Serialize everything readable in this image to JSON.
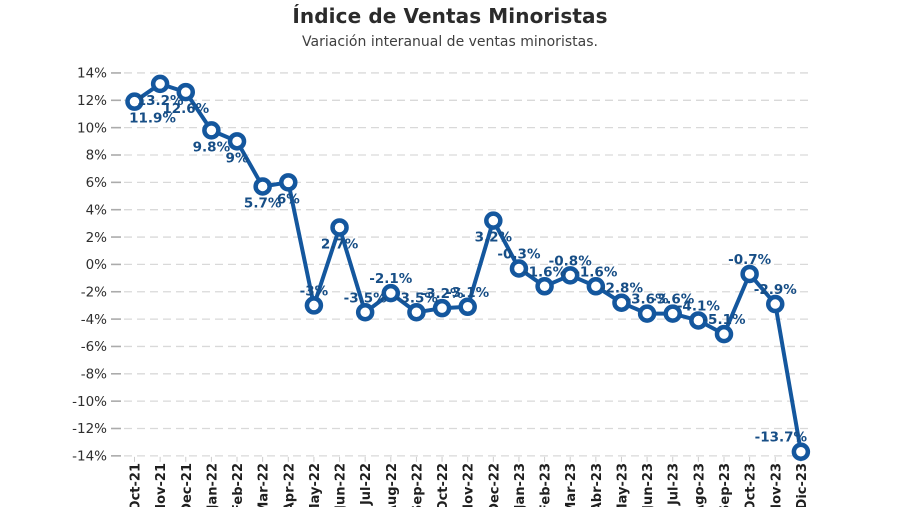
{
  "chart_data": {
    "type": "line",
    "title": "Índice de Ventas Minoristas",
    "subtitle": "Variación interanual de ventas minoristas.",
    "categories": [
      "Oct-21",
      "Nov-21",
      "Dec-21",
      "Jan-22",
      "Feb-22",
      "Mar-22",
      "Apr-22",
      "May-22",
      "Jun-22",
      "Jul-22",
      "Aug-22",
      "Sep-22",
      "Oct-22",
      "Nov-22",
      "Dec-22",
      "Jan-23",
      "Feb-23",
      "Mar-23",
      "Abr-23",
      "May-23",
      "Jun-23",
      "Jul-23",
      "Ago-23",
      "Sep-23",
      "Oct-23",
      "Nov-23",
      "Dic-23"
    ],
    "values": [
      11.9,
      13.2,
      12.6,
      9.8,
      9,
      5.7,
      6,
      -3,
      2.7,
      -3.5,
      -2.1,
      -3.5,
      -3.2,
      -3.1,
      3.2,
      -0.3,
      -1.6,
      -0.8,
      -1.6,
      -2.8,
      -3.6,
      -3.6,
      -4.1,
      -5.1,
      -0.7,
      -2.9,
      -13.7
    ],
    "point_labels": [
      "11.9%",
      "13.2%",
      "12.6%",
      "9.8%",
      "9%",
      "5.7%",
      "6%",
      "-3%",
      "2.7%",
      "-3.5%",
      "-2.1%",
      "-3.5%",
      "-3.2%",
      "-3.1%",
      "3.2%",
      "-0.3%",
      "-1.6%",
      "-0.8%",
      "-1.6%",
      "-2.8%",
      "-3.6%",
      "-3.6%",
      "-4.1%",
      "-5.1%",
      "-0.7%",
      "-2.9%",
      "-13.7%"
    ],
    "ylim": [
      -14,
      14
    ],
    "ytick_step": 2,
    "ytick_labels": [
      "14%",
      "12%",
      "10%",
      "8%",
      "6%",
      "4%",
      "2%",
      "0%",
      "-2%",
      "-4%",
      "-6%",
      "-8%",
      "-10%",
      "-12%",
      "-14%"
    ],
    "grid": "horizontal-dashed",
    "legend": "none",
    "colors": {
      "line": "#14579e",
      "marker_fill": "#ffffff",
      "point_label": "#174e86",
      "ytick_text": "#2e2e2e",
      "xtick_text": "#1f1f1f",
      "gridline": "#d9d9d9",
      "tick_mark": "#ababab",
      "xtick_mark": "#cccccc"
    },
    "label_offset_exceptions": {
      "0": 18,
      "26": -20
    }
  }
}
